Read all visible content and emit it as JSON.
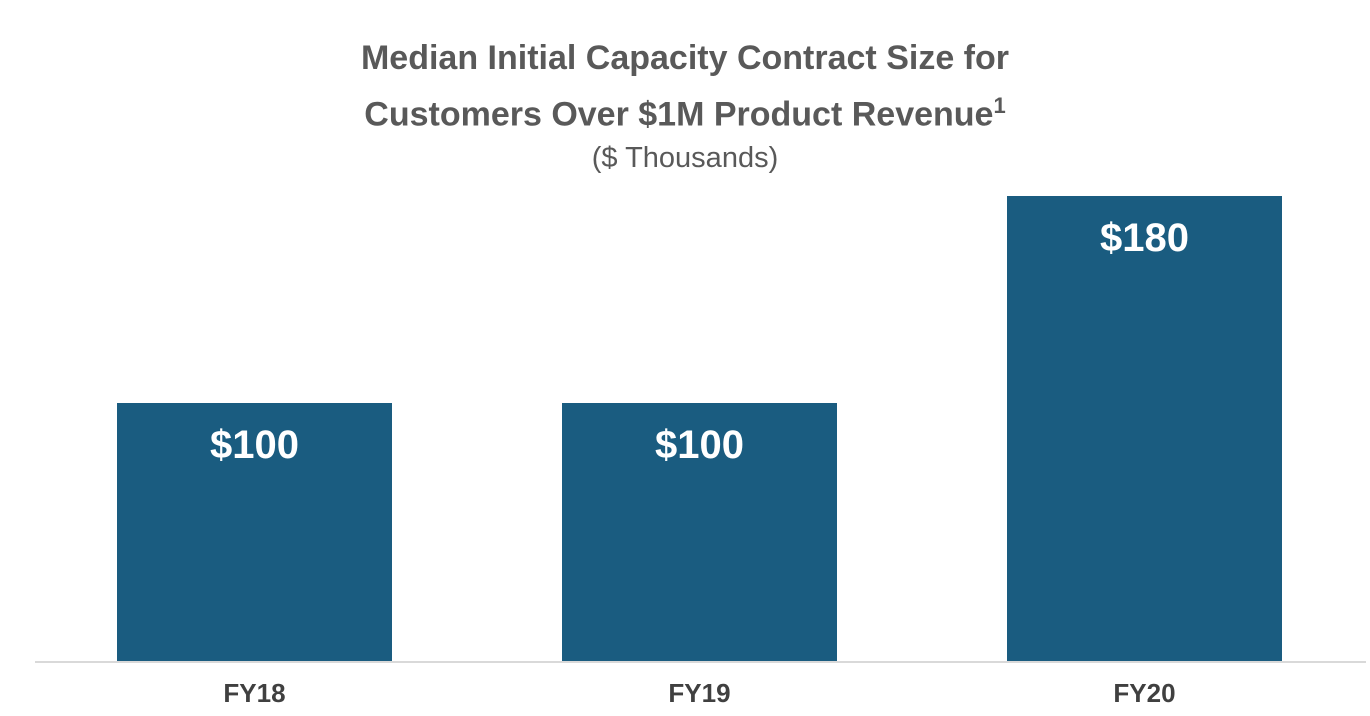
{
  "chart_data": {
    "type": "bar",
    "title_line1": "Median Initial Capacity Contract Size for",
    "title_line2": "Customers Over $1M Product Revenue",
    "title_superscript": "1",
    "subtitle": "($ Thousands)",
    "categories": [
      "FY18",
      "FY19",
      "FY20"
    ],
    "values": [
      100,
      100,
      180
    ],
    "value_labels": [
      "$100",
      "$100",
      "$180"
    ],
    "ylabel": "",
    "xlabel": "",
    "ylim": [
      0,
      180
    ],
    "grid": false,
    "legend": "none",
    "colors": {
      "bar": "#1A5C80",
      "title_text": "#595959",
      "axis_label_text": "#404040",
      "value_label_text": "#ffffff",
      "baseline": "#d9d9d9"
    }
  }
}
